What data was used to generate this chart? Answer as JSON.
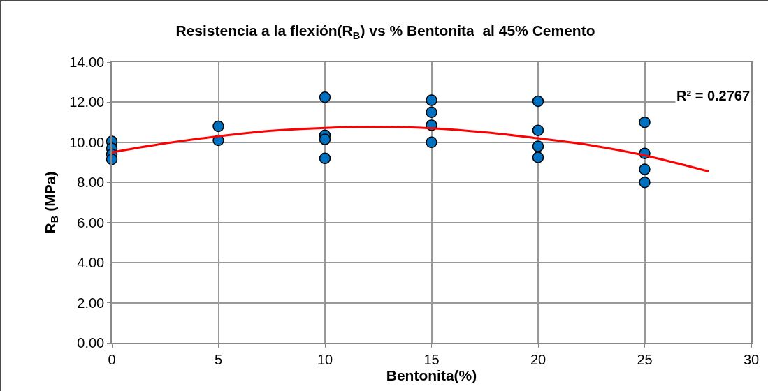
{
  "chart_data": {
    "type": "scatter",
    "title": "Resistencia a la flexión(R$_{B}$) vs % Bentonita  al 45% Cemento",
    "xlabel": "Bentonita(%)",
    "ylabel": "R$_{B}$ (MPa)",
    "series": [
      {
        "color": "#0070c0",
        "x": [
          0,
          0,
          0,
          0,
          5,
          5,
          10,
          10,
          10,
          10,
          15,
          15,
          15,
          15,
          20,
          20,
          20,
          20,
          25,
          25,
          25,
          25
        ],
        "values": [
          10.05,
          9.7,
          9.4,
          9.15,
          10.8,
          10.1,
          12.25,
          10.35,
          10.15,
          9.2,
          12.1,
          11.5,
          10.85,
          10.0,
          12.05,
          10.6,
          9.8,
          9.25,
          11.0,
          9.45,
          8.65,
          8.0
        ]
      },
      {
        "type": "line",
        "color": "#ff0000",
        "marker": "none",
        "x": [
          0,
          2.5,
          5,
          7.5,
          10,
          12.5,
          15,
          17.5,
          20,
          22.5,
          25,
          28
        ],
        "values": [
          9.5,
          9.95,
          10.3,
          10.58,
          10.72,
          10.78,
          10.7,
          10.5,
          10.2,
          9.85,
          9.35,
          8.55
        ]
      }
    ],
    "annotations": [
      "R² = 0.2767"
    ],
    "xlim": [
      0,
      30
    ],
    "xticks": [
      0,
      5,
      10,
      15,
      20,
      25,
      30
    ],
    "ylim": [
      0,
      14
    ],
    "yticks": [
      {
        "value": 0,
        "label": "0.00"
      },
      {
        "value": 2,
        "label": "2.00"
      },
      {
        "value": 4,
        "label": "4.00"
      },
      {
        "value": 6,
        "label": "6.00"
      },
      {
        "value": 8,
        "label": "8.00"
      },
      {
        "value": 10,
        "label": "10.00"
      },
      {
        "value": 12,
        "label": "12.00"
      },
      {
        "value": 14,
        "label": "14.00"
      }
    ],
    "grid": true,
    "marker": "circle"
  }
}
